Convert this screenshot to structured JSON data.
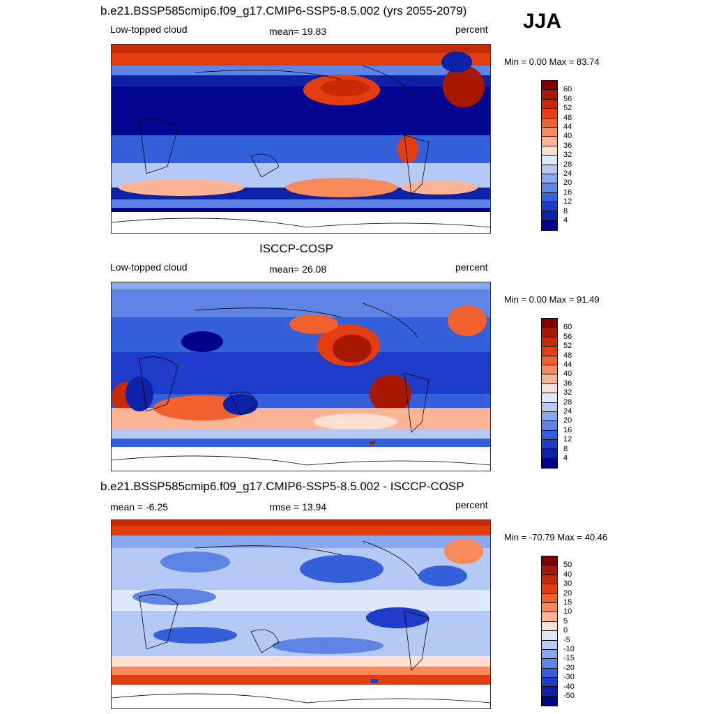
{
  "season_label": "JJA",
  "panels": [
    {
      "title": "b.e21.BSSP585cmip6.f09_g17.CMIP6-SSP5-8.5.002 (yrs 2055-2079)",
      "left": "Low-topped cloud",
      "center": "mean=  19.83",
      "right": "percent",
      "minmax": "Min =   0.00 Max =  83.74",
      "colorbar": {
        "labels": [
          "60",
          "56",
          "52",
          "48",
          "44",
          "40",
          "36",
          "32",
          "28",
          "24",
          "20",
          "16",
          "12",
          "8",
          "4"
        ],
        "colors": [
          "#7f0000",
          "#a81800",
          "#c72a04",
          "#e33d10",
          "#f2602d",
          "#f98a5c",
          "#fcb594",
          "#fde0cf",
          "#dfe8fb",
          "#b5c9f5",
          "#8aa8ee",
          "#5e84e6",
          "#3560dc",
          "#1c3cc9",
          "#0b22a8",
          "#00008b"
        ]
      }
    },
    {
      "title": "ISCCP-COSP",
      "left": "Low-topped cloud",
      "center": "mean=  26.08",
      "right": "percent",
      "minmax": "Min =   0.00 Max =  91.49",
      "colorbar": {
        "labels": [
          "60",
          "56",
          "52",
          "48",
          "44",
          "40",
          "36",
          "32",
          "28",
          "24",
          "20",
          "16",
          "12",
          "8",
          "4"
        ],
        "colors": [
          "#7f0000",
          "#a81800",
          "#c72a04",
          "#e33d10",
          "#f2602d",
          "#f98a5c",
          "#fcb594",
          "#fde0cf",
          "#dfe8fb",
          "#b5c9f5",
          "#8aa8ee",
          "#5e84e6",
          "#3560dc",
          "#1c3cc9",
          "#0b22a8",
          "#00008b"
        ]
      }
    },
    {
      "title": "b.e21.BSSP585cmip6.f09_g17.CMIP6-SSP5-8.5.002 - ISCCP-COSP",
      "left": "mean =  -6.25",
      "center": "rmse =  13.94",
      "right": "percent",
      "minmax": "Min = -70.79 Max =  40.46",
      "colorbar": {
        "labels": [
          "50",
          "40",
          "30",
          "20",
          "15",
          "10",
          "5",
          "0",
          "-5",
          "-10",
          "-15",
          "-20",
          "-30",
          "-40",
          "-50"
        ],
        "colors": [
          "#7f0000",
          "#a81800",
          "#c72a04",
          "#e33d10",
          "#f2602d",
          "#f98a5c",
          "#fcb594",
          "#fde0cf",
          "#dfe8fb",
          "#b5c9f5",
          "#8aa8ee",
          "#5e84e6",
          "#3560dc",
          "#1c3cc9",
          "#0b22a8",
          "#00008b"
        ]
      }
    }
  ]
}
